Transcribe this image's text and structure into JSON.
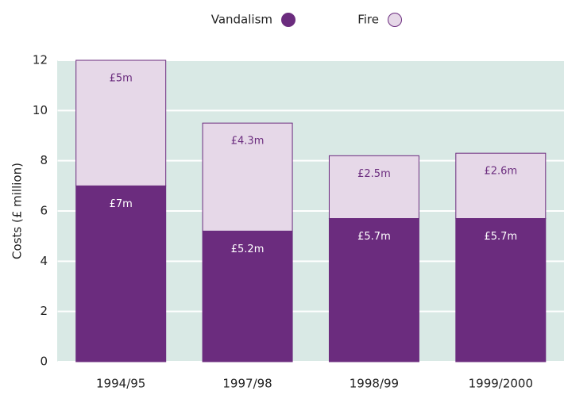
{
  "chart_data": {
    "type": "stacked_bar",
    "categories": [
      "1994/95",
      "1997/98",
      "1998/99",
      "1999/2000"
    ],
    "series": [
      {
        "name": "Vandalism",
        "color": "#6b2c7e",
        "values": [
          7,
          5.2,
          5.7,
          5.7
        ],
        "value_labels": [
          "£7m",
          "£5.2m",
          "£5.7m",
          "£5.7m"
        ]
      },
      {
        "name": "Fire",
        "color": "#e6d8e8",
        "values": [
          5,
          4.3,
          2.5,
          2.6
        ],
        "value_labels": [
          "£5m",
          "£4.3m",
          "£2.5m",
          "£2.6m"
        ]
      }
    ],
    "y_label": "Costs (£ million)",
    "ylim": [
      0,
      12
    ],
    "yticks": [
      0,
      2,
      4,
      6,
      8,
      10,
      12
    ],
    "grid": true,
    "legend": "top"
  }
}
